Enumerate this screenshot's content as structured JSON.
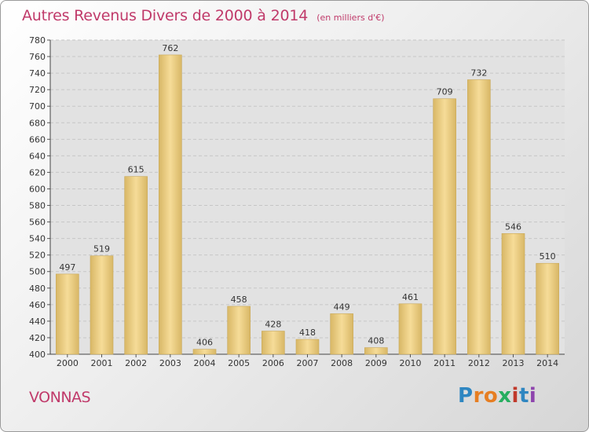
{
  "title": "Autres Revenus Divers de 2000 à 2014",
  "subtitle": "(en milliers d'€)",
  "commune": "VONNAS",
  "brand": {
    "name": "Proxiti",
    "letters": [
      {
        "ch": "P",
        "color": "#2e86c1"
      },
      {
        "ch": "r",
        "color": "#e67e22"
      },
      {
        "ch": "o",
        "color": "#e67e22"
      },
      {
        "ch": "x",
        "color": "#27ae60"
      },
      {
        "ch": "i",
        "color": "#c0392b"
      },
      {
        "ch": "t",
        "color": "#2e86c1"
      },
      {
        "ch": "i",
        "color": "#8e44ad"
      }
    ]
  },
  "chart_data": {
    "type": "bar",
    "categories": [
      "2000",
      "2001",
      "2002",
      "2003",
      "2004",
      "2005",
      "2006",
      "2007",
      "2008",
      "2009",
      "2010",
      "2011",
      "2012",
      "2013",
      "2014"
    ],
    "values": [
      497,
      519,
      615,
      762,
      406,
      458,
      428,
      418,
      449,
      408,
      461,
      709,
      732,
      546,
      510
    ],
    "ylim": [
      400,
      780
    ],
    "yticks": [
      400,
      420,
      440,
      460,
      480,
      500,
      520,
      540,
      560,
      580,
      600,
      620,
      640,
      660,
      680,
      700,
      720,
      740,
      760,
      780
    ],
    "grid": true,
    "bar_color": "#e8c878"
  }
}
